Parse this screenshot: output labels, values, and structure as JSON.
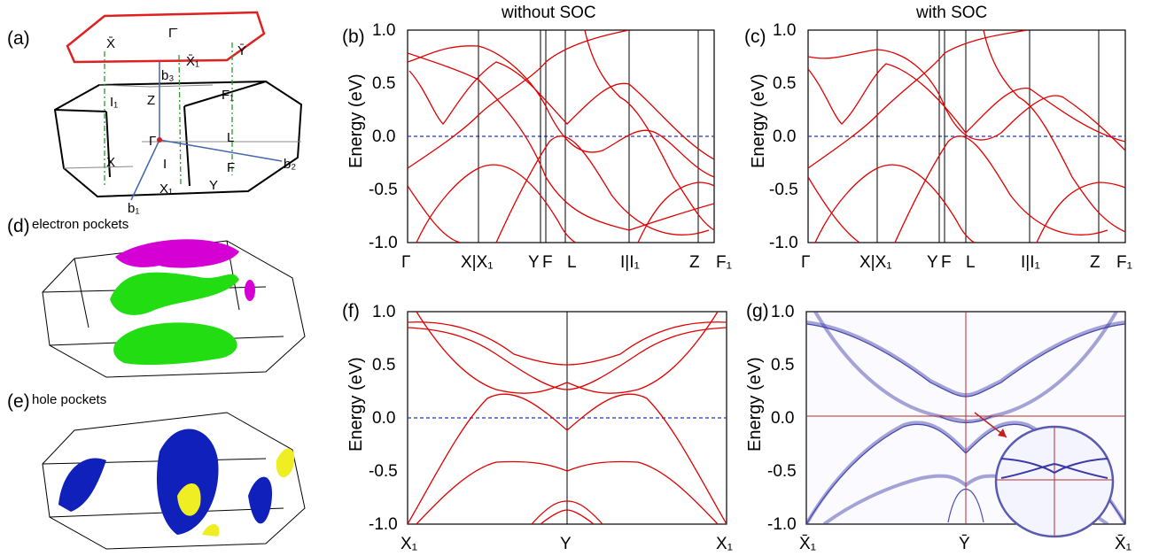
{
  "panels": {
    "a": {
      "label": "(a)",
      "points": {
        "Xbar": "X̄",
        "Gbar": "Γ̄",
        "X1bar": "X̄₁",
        "Ybar": "Ȳ",
        "b3": "b₃",
        "I1": "I₁",
        "Z": "Z",
        "F1": "F₁",
        "Gamma": "Γ",
        "L": "L",
        "X": "X",
        "I": "I",
        "F": "F",
        "X1": "X₁",
        "Y": "Y",
        "b2": "b₂",
        "b1": "b₁"
      }
    },
    "d": {
      "label": "(d)",
      "caption": "electron pockets"
    },
    "e": {
      "label": "(e)",
      "caption": "hole pockets"
    },
    "b": {
      "label": "(b)",
      "title": "without SOC",
      "ylabel": "Energy (eV)",
      "yticks": [
        "1.0",
        "0.5",
        "0.0",
        "-0.5",
        "-1.0"
      ],
      "kpath": [
        "Γ",
        "X|X₁",
        "Y",
        "F",
        "L",
        "I|I₁",
        "Z",
        "F₁"
      ]
    },
    "c": {
      "label": "(c)",
      "title": "with SOC",
      "ylabel": "Energy (eV)",
      "yticks": [
        "1.0",
        "0.5",
        "0.0",
        "-0.5",
        "-1.0"
      ],
      "kpath": [
        "Γ",
        "X|X₁",
        "Y",
        "F",
        "L",
        "I|I₁",
        "Z",
        "F₁"
      ]
    },
    "f": {
      "label": "(f)",
      "ylabel": "Energy (eV)",
      "yticks": [
        "1.0",
        "0.5",
        "0.0",
        "-0.5",
        "-1.0"
      ],
      "kpath": [
        "X₁",
        "Y",
        "X₁"
      ]
    },
    "g": {
      "label": "(g)",
      "ylabel": "Energy (eV)",
      "yticks": [
        "1.0",
        "0.5",
        "0.0",
        "-0.5",
        "-1.0"
      ],
      "kpath": [
        "X̄₁",
        "Ȳ",
        "X̄₁"
      ]
    }
  },
  "chart_data": [
    {
      "type": "line",
      "panel": "b",
      "title": "without SOC",
      "ylabel": "Energy (eV)",
      "ylim": [
        -1.0,
        1.0
      ],
      "x_labels": [
        "Γ",
        "X|X₁",
        "Y",
        "F",
        "L",
        "I|I₁",
        "Z",
        "F₁"
      ],
      "series": [
        {
          "values": [
            0.82,
            0.78,
            0.72,
            0.6,
            0.45,
            0.35,
            0.2,
            0.1
          ]
        },
        {
          "values": [
            0.1,
            0.0,
            -0.2,
            -0.35,
            -0.5,
            -0.7,
            -0.85,
            -1.0
          ]
        },
        {
          "values": [
            0.3,
            0.6,
            0.85,
            0.8,
            0.5,
            0.2,
            -0.05,
            -0.1
          ]
        }
      ]
    },
    {
      "type": "line",
      "panel": "c",
      "title": "with SOC",
      "ylabel": "Energy (eV)",
      "ylim": [
        -1.0,
        1.0
      ],
      "x_labels": [
        "Γ",
        "X|X₁",
        "Y",
        "F",
        "L",
        "I|I₁",
        "Z",
        "F₁"
      ],
      "series": [
        {
          "values": [
            0.75,
            0.8,
            0.82,
            0.7,
            0.5,
            0.3,
            0.15,
            0.05
          ]
        },
        {
          "values": [
            0.05,
            -0.05,
            -0.2,
            -0.4,
            -0.55,
            -0.7,
            -0.85,
            -1.0
          ]
        }
      ]
    },
    {
      "type": "line",
      "panel": "f",
      "ylabel": "Energy (eV)",
      "ylim": [
        -1.0,
        1.0
      ],
      "x_labels": [
        "X₁",
        "Y",
        "X₁"
      ],
      "series": [
        {
          "values": [
            0.9,
            0.48,
            0.9
          ]
        },
        {
          "values": [
            0.85,
            0.25,
            0.85
          ]
        },
        {
          "values": [
            -1.0,
            -0.12,
            -1.0
          ]
        },
        {
          "values": [
            -1.0,
            -0.52,
            -1.0
          ]
        }
      ]
    },
    {
      "type": "heatmap",
      "panel": "g",
      "ylabel": "Energy (eV)",
      "ylim": [
        -1.0,
        1.0
      ],
      "x_labels": [
        "X̄₁",
        "Ȳ",
        "X̄₁"
      ]
    }
  ],
  "colors": {
    "band": "#e00000",
    "fermi": "#2233cc",
    "electron_main": "#d400d4",
    "electron_green": "#22dd11",
    "hole_blue": "#1020bb",
    "hole_yellow": "#eeee22",
    "surface": "#3a3aa8"
  }
}
